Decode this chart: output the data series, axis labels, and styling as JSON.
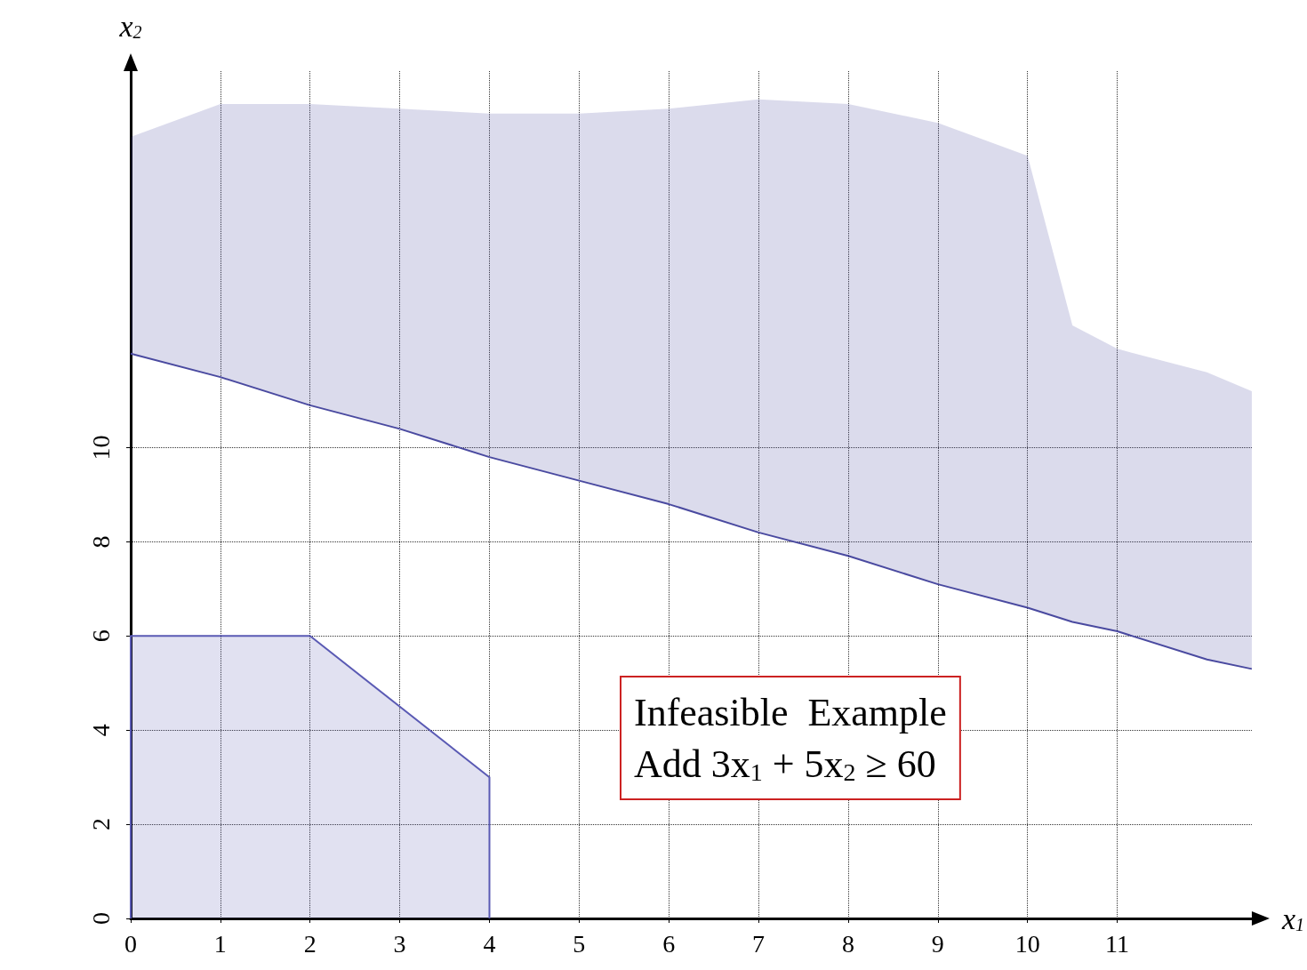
{
  "chart_data": {
    "type": "line",
    "xlabel": "x$_{1}$",
    "ylabel": "x$_{2}$",
    "annotations": [
      "Infeasible  Example",
      "Add 3x$_{1}$ + 5x$_{2}$ ≥ 60"
    ],
    "xlim": [
      0,
      12.5
    ],
    "xticks": [
      0,
      1,
      2,
      3,
      4,
      5,
      6,
      7,
      8,
      9,
      10,
      11
    ],
    "ylim": [
      0,
      18
    ],
    "yticks": [
      0,
      2,
      4,
      6,
      8,
      10
    ],
    "grid": true,
    "marker": "none",
    "series": [
      {
        "type": "area",
        "color": "#5a5ab4",
        "x": [
          0,
          0,
          2,
          4,
          4
        ],
        "values": [
          0,
          6,
          6,
          3,
          0
        ]
      },
      {
        "color": "#4a4aa0",
        "x": [
          0,
          1,
          2,
          3,
          4,
          5,
          6,
          7,
          8,
          9,
          10,
          10.5,
          11,
          12,
          12.5
        ],
        "values": [
          12,
          11.5,
          10.9,
          10.4,
          9.8,
          9.3,
          8.8,
          8.2,
          7.7,
          7.1,
          6.6,
          6.3,
          6.1,
          5.5,
          5.3
        ],
        "lower": [
          12,
          11.5,
          10.9,
          10.4,
          9.8,
          9.3,
          8.8,
          8.2,
          7.7,
          7.1,
          6.6,
          6.3,
          6.1,
          5.5,
          5.3
        ],
        "upper": [
          16.6,
          17.3,
          17.3,
          17.2,
          17.1,
          17.1,
          17.2,
          17.4,
          17.3,
          16.9,
          16.2,
          12.6,
          12.1,
          11.6,
          11.2
        ]
      }
    ]
  }
}
